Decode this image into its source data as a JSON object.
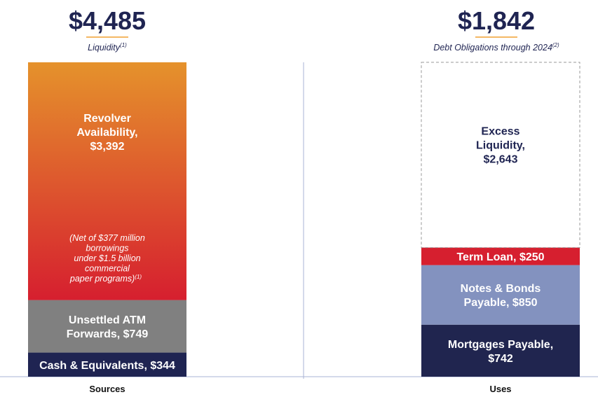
{
  "chart_data": {
    "type": "bar",
    "stacked": true,
    "categories": [
      "Sources",
      "Uses"
    ],
    "totals": [
      {
        "value": "$4,485",
        "label": "Liquidity",
        "footnote": "(1)"
      },
      {
        "value": "$1,842",
        "label": "Debt Obligations through 2024",
        "footnote": "(2)"
      }
    ],
    "series": [
      {
        "category": "Sources",
        "segments": [
          {
            "label_lines": [
              "Cash & Equivalents, $344"
            ],
            "value": 344,
            "color": "#1f2452",
            "text_color": "#ffffff"
          },
          {
            "label_lines": [
              "Unsettled ATM",
              "Forwards, $749"
            ],
            "value": 749,
            "color": "#808080",
            "text_color": "#ffffff"
          },
          {
            "label_lines": [
              "Revolver",
              "Availability,",
              "$3,392"
            ],
            "value": 3392,
            "gradient": [
              "#e5922c",
              "#d61f2f"
            ],
            "text_color": "#ffffff",
            "note_lines": [
              "(Net of $377 million",
              "borrowings",
              "under $1.5 billion",
              "commercial",
              "paper programs)"
            ],
            "note_footnote": "(1)"
          }
        ]
      },
      {
        "category": "Uses",
        "segments": [
          {
            "label_lines": [
              "Mortgages Payable,",
              "$742"
            ],
            "value": 742,
            "color": "#20254f",
            "text_color": "#ffffff"
          },
          {
            "label_lines": [
              "Notes & Bonds",
              "Payable, $850"
            ],
            "value": 850,
            "color": "#8392bf",
            "text_color": "#ffffff"
          },
          {
            "label_lines": [
              "Term Loan, $250"
            ],
            "value": 250,
            "color": "#d61f2f",
            "text_color": "#ffffff"
          },
          {
            "label_lines": [
              "Excess",
              "Liquidity,",
              "$2,643"
            ],
            "value": 2643,
            "color": "none",
            "dashed": true,
            "text_color": "#1f2452"
          }
        ]
      }
    ],
    "colors": {
      "accent_underline": "#f0a030",
      "title": "#1f2452",
      "axis": "#aab3d4"
    }
  }
}
